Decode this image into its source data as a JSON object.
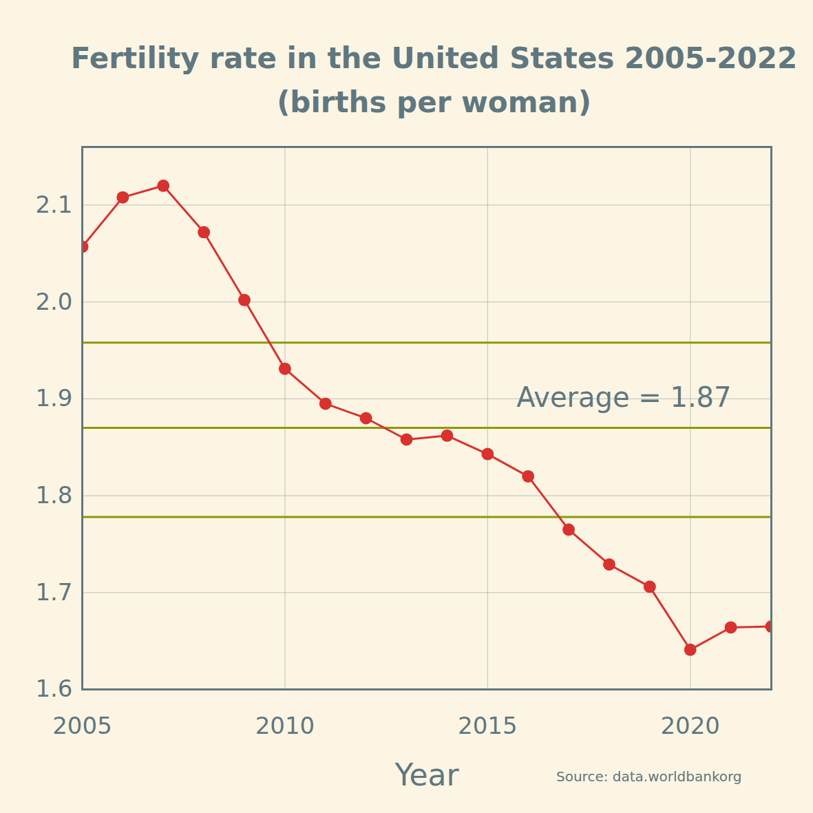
{
  "chart_data": {
    "type": "line",
    "title": "Fertility rate in the United States 2005-2022",
    "subtitle": "(births per woman)",
    "x_label": "Year",
    "source": "Source: data.worldbankorg",
    "x": [
      2005,
      2006,
      2007,
      2008,
      2009,
      2010,
      2011,
      2012,
      2013,
      2014,
      2015,
      2016,
      2017,
      2018,
      2019,
      2020,
      2021,
      2022
    ],
    "values": [
      2.057,
      2.108,
      2.12,
      2.072,
      2.002,
      1.931,
      1.895,
      1.88,
      1.858,
      1.862,
      1.843,
      1.82,
      1.765,
      1.729,
      1.706,
      1.641,
      1.664,
      1.665
    ],
    "color": "#d9312e",
    "marker": "circle",
    "xlim": [
      2005,
      2022
    ],
    "xticks": [
      2005,
      2010,
      2015,
      2020
    ],
    "ylim": [
      1.6,
      2.16
    ],
    "yticks": [
      1.6,
      1.7,
      1.8,
      1.9,
      {
        "value": 2,
        "label": "2.0"
      },
      2.1
    ],
    "grid": true,
    "average": 1.87,
    "annotation": "Average = 1.87",
    "band": [
      1.778,
      1.958
    ]
  }
}
